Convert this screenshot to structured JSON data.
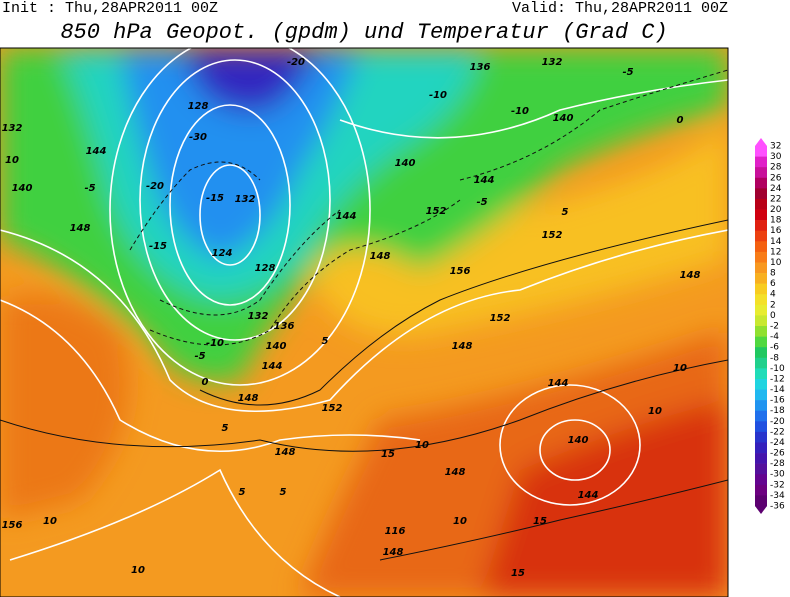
{
  "header": {
    "init": "Init : Thu,28APR2011 00Z",
    "valid": "Valid: Thu,28APR2011 00Z",
    "title": "850 hPa Geopot. (gpdm) und Temperatur (Grad C)"
  },
  "colorbar": {
    "labels": [
      "32",
      "30",
      "28",
      "26",
      "24",
      "22",
      "20",
      "18",
      "16",
      "14",
      "12",
      "10",
      "8",
      "6",
      "4",
      "2",
      "0",
      "-2",
      "-4",
      "-6",
      "-8",
      "-10",
      "-12",
      "-14",
      "-16",
      "-18",
      "-20",
      "-22",
      "-24",
      "-26",
      "-28",
      "-30",
      "-32",
      "-34",
      "-36"
    ],
    "colors": [
      "#ff50ff",
      "#e020c8",
      "#c8109a",
      "#b00060",
      "#a00030",
      "#b80018",
      "#d00010",
      "#e02010",
      "#ec4010",
      "#f46010",
      "#f87c18",
      "#f89820",
      "#f8b020",
      "#f8cc20",
      "#f4e028",
      "#e8ec30",
      "#c8e830",
      "#90e030",
      "#50d840",
      "#20c860",
      "#20d08c",
      "#20dcb8",
      "#20d4e0",
      "#20b8f0",
      "#2094f0",
      "#2070ec",
      "#2050e0",
      "#2834cc",
      "#3420bc",
      "#4414ac",
      "#54109c",
      "#640490",
      "#6c0080",
      "#5c0070"
    ]
  },
  "map": {
    "labels": [
      "136",
      "132",
      "-5",
      "128",
      "-20",
      "-30",
      "144",
      "132",
      "10",
      "140",
      "-5",
      "-20",
      "148",
      "-15",
      "-15",
      "132",
      "124",
      "128",
      "132",
      "136",
      "140",
      "144",
      "148",
      "152",
      "-10",
      "-5",
      "0",
      "5",
      "5",
      "144",
      "152",
      "148",
      "156",
      "152",
      "148",
      "152",
      "148",
      "140",
      "144",
      "140",
      "-10",
      "-10",
      "-5",
      "5",
      "0",
      "144",
      "140",
      "144",
      "10",
      "10",
      "148",
      "148",
      "156",
      "10",
      "10",
      "10",
      "15",
      "15",
      "148",
      "116",
      "5",
      "5",
      "15",
      "10"
    ]
  }
}
